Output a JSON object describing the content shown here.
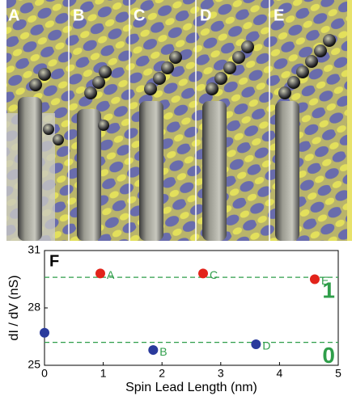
{
  "panels": [
    "A",
    "B",
    "C",
    "D",
    "E"
  ],
  "chart_data": {
    "type": "scatter",
    "panel_label": "F",
    "x_label": "Spin Lead Length (nm)",
    "y_label": "dI / dV (nS)",
    "x": [
      0,
      0.95,
      1.85,
      2.7,
      3.6,
      4.6
    ],
    "values": [
      26.7,
      29.8,
      25.8,
      29.8,
      26.1,
      29.5
    ],
    "point_labels": [
      null,
      "A",
      "B",
      "C",
      "D",
      "E"
    ],
    "colors": [
      "#2a3a9c",
      "#e2231a",
      "#2a3a9c",
      "#e2231a",
      "#2a3a9c",
      "#e2231a"
    ],
    "levels": [
      {
        "value": 29.6,
        "label": "1"
      },
      {
        "value": 26.2,
        "label": "0"
      }
    ],
    "level_color": "#2f9e4a",
    "xlim": [
      0,
      5
    ],
    "ylim": [
      25,
      31
    ],
    "xticks": [
      0,
      1,
      2,
      3,
      4,
      5
    ],
    "yticks": [
      25,
      28,
      31
    ]
  }
}
